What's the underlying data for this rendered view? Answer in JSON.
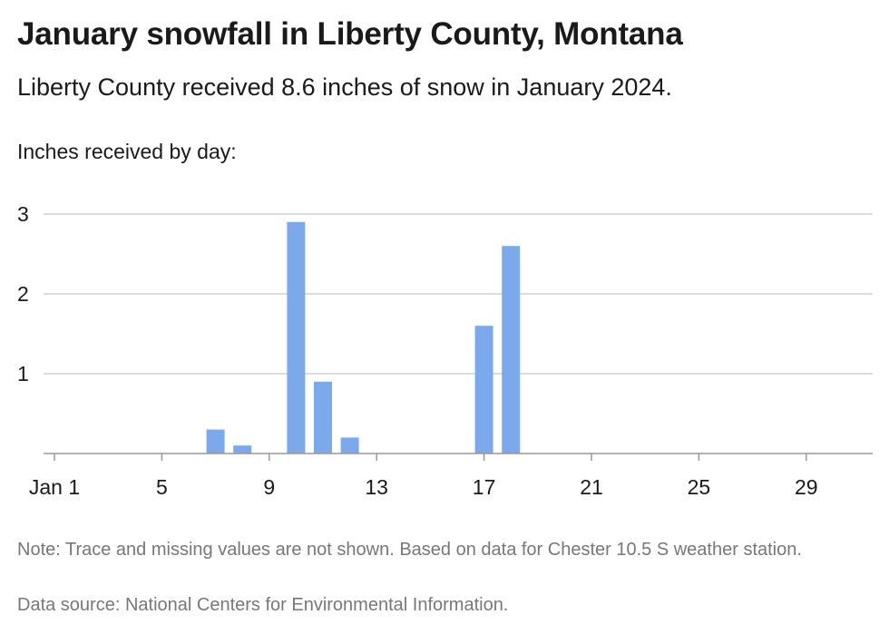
{
  "header": {
    "title": "January snowfall in Liberty County, Montana",
    "subtitle": "Liberty County received 8.6 inches of snow in January 2024.",
    "axis_caption": "Inches received by day:"
  },
  "footer": {
    "note": "Note: Trace and missing values are not shown. Based on data for Chester 10.5 S weather station.",
    "source": "Data source: National Centers for Environmental Information."
  },
  "chart_data": {
    "type": "bar",
    "title": "January snowfall in Liberty County, Montana",
    "subtitle": "Liberty County received 8.6 inches of snow in January 2024.",
    "ylabel": "Inches received by day:",
    "xlabel": "",
    "x": [
      1,
      2,
      3,
      4,
      5,
      6,
      7,
      8,
      9,
      10,
      11,
      12,
      13,
      14,
      15,
      16,
      17,
      18,
      19,
      20,
      21,
      22,
      23,
      24,
      25,
      26,
      27,
      28,
      29,
      30,
      31
    ],
    "values": [
      null,
      null,
      null,
      null,
      null,
      null,
      0.3,
      0.1,
      null,
      2.9,
      0.9,
      0.2,
      null,
      null,
      null,
      null,
      1.6,
      2.6,
      null,
      null,
      null,
      null,
      null,
      null,
      null,
      null,
      null,
      null,
      null,
      null,
      null
    ],
    "xticks": [
      {
        "day": 1,
        "label": "Jan 1"
      },
      {
        "day": 5,
        "label": "5"
      },
      {
        "day": 9,
        "label": "9"
      },
      {
        "day": 13,
        "label": "13"
      },
      {
        "day": 17,
        "label": "17"
      },
      {
        "day": 21,
        "label": "21"
      },
      {
        "day": 25,
        "label": "25"
      },
      {
        "day": 29,
        "label": "29"
      }
    ],
    "yticks": [
      1,
      2,
      3
    ],
    "ylim": [
      0,
      3
    ],
    "xlim": [
      1,
      31
    ],
    "grid": true,
    "bar_color": "#7ba9ec",
    "grid_color": "#bbbbbb",
    "axis_color": "#999999"
  }
}
